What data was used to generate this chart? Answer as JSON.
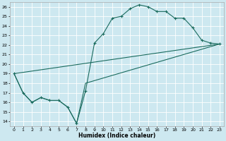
{
  "xlabel": "Humidex (Indice chaleur)",
  "bg_color": "#cde8f0",
  "line_color": "#1a6b5e",
  "grid_color": "#ffffff",
  "xlim": [
    -0.5,
    23.5
  ],
  "ylim": [
    13.5,
    26.5
  ],
  "xticks": [
    0,
    1,
    2,
    3,
    4,
    5,
    6,
    7,
    8,
    9,
    10,
    11,
    12,
    13,
    14,
    15,
    16,
    17,
    18,
    19,
    20,
    21,
    22,
    23
  ],
  "yticks": [
    14,
    15,
    16,
    17,
    18,
    19,
    20,
    21,
    22,
    23,
    24,
    25,
    26
  ],
  "line1_x": [
    0,
    1,
    2,
    3,
    4,
    5,
    6,
    7,
    8,
    9,
    10,
    11,
    12,
    13,
    14,
    15,
    16,
    17,
    18,
    19,
    20,
    21,
    22,
    23
  ],
  "line1_y": [
    19.0,
    17.0,
    16.0,
    16.5,
    16.2,
    16.2,
    15.5,
    13.8,
    17.2,
    22.2,
    23.2,
    24.8,
    25.0,
    25.8,
    26.2,
    26.0,
    25.5,
    25.5,
    24.8,
    24.8,
    23.8,
    22.5,
    22.2,
    22.1
  ],
  "line2_x": [
    0,
    1,
    2,
    3,
    4,
    5,
    6,
    7,
    8,
    23
  ],
  "line2_y": [
    19.0,
    17.0,
    16.0,
    16.5,
    16.2,
    16.2,
    15.5,
    13.8,
    18.0,
    22.1
  ],
  "line3_x": [
    0,
    23
  ],
  "line3_y": [
    19.0,
    22.1
  ]
}
